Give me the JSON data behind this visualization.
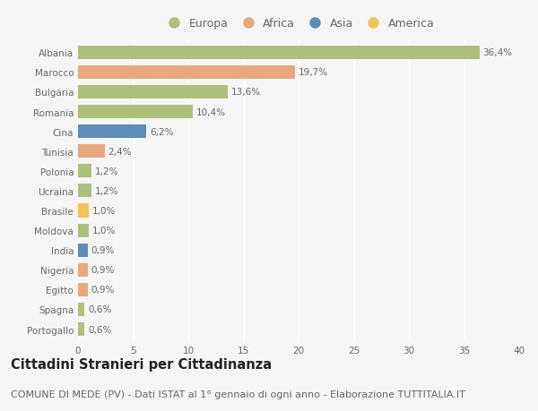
{
  "countries": [
    "Albania",
    "Marocco",
    "Bulgaria",
    "Romania",
    "Cina",
    "Tunisia",
    "Polonia",
    "Ucraina",
    "Brasile",
    "Moldova",
    "India",
    "Nigeria",
    "Egitto",
    "Spagna",
    "Portogallo"
  ],
  "values": [
    36.4,
    19.7,
    13.6,
    10.4,
    6.2,
    2.4,
    1.2,
    1.2,
    1.0,
    1.0,
    0.9,
    0.9,
    0.9,
    0.6,
    0.6
  ],
  "labels": [
    "36,4%",
    "19,7%",
    "13,6%",
    "10,4%",
    "6,2%",
    "2,4%",
    "1,2%",
    "1,2%",
    "1,0%",
    "1,0%",
    "0,9%",
    "0,9%",
    "0,9%",
    "0,6%",
    "0,6%"
  ],
  "continents": [
    "Europa",
    "Africa",
    "Europa",
    "Europa",
    "Asia",
    "Africa",
    "Europa",
    "Europa",
    "America",
    "Europa",
    "Asia",
    "Africa",
    "Africa",
    "Europa",
    "Europa"
  ],
  "colors": {
    "Europa": "#adc07a",
    "Africa": "#e8a87c",
    "Asia": "#5b8db8",
    "America": "#f0c455"
  },
  "legend_order": [
    "Europa",
    "Africa",
    "Asia",
    "America"
  ],
  "legend_colors": [
    "#adc07a",
    "#e8a87c",
    "#5b8db8",
    "#f0c455"
  ],
  "xlim": [
    0,
    40
  ],
  "xticks": [
    0,
    5,
    10,
    15,
    20,
    25,
    30,
    35,
    40
  ],
  "title": "Cittadini Stranieri per Cittadinanza",
  "subtitle": "COMUNE DI MEDE (PV) - Dati ISTAT al 1° gennaio di ogni anno - Elaborazione TUTTITALIA.IT",
  "background_color": "#f5f5f5",
  "bar_height": 0.68,
  "grid_color": "#ffffff",
  "title_fontsize": 10.5,
  "subtitle_fontsize": 8,
  "label_fontsize": 7.5,
  "tick_fontsize": 7.5,
  "legend_fontsize": 9
}
